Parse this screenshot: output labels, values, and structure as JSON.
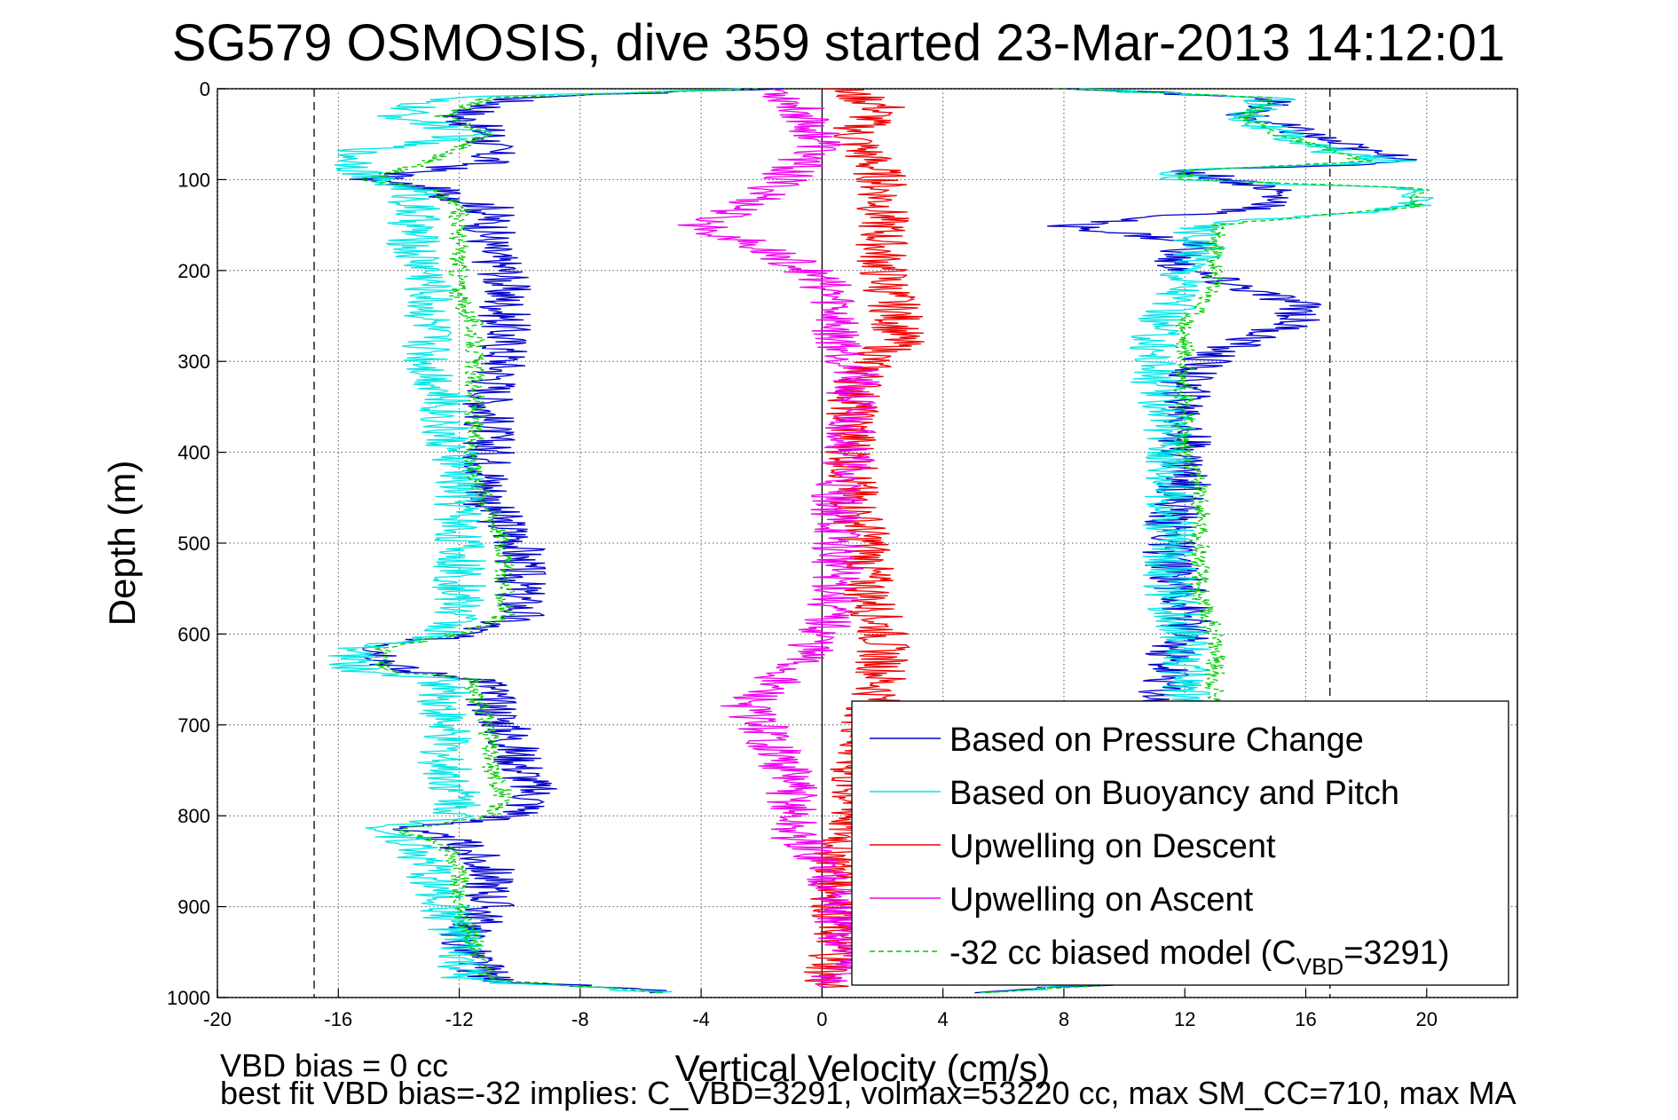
{
  "chart_data": {
    "type": "line",
    "title": "SG579 OSMOSIS, dive 359 started 23-Mar-2013 14:12:01",
    "xlabel": "Vertical Velocity (cm/s)",
    "ylabel": "Depth (m)",
    "xlim": [
      -20,
      23
    ],
    "ylim": [
      0,
      1000
    ],
    "y_reversed": true,
    "grid": true,
    "legend_position": "bottom-right",
    "x_ticks": [
      "-20",
      "-16",
      "-12",
      "-8",
      "-4",
      "0",
      "4",
      "8",
      "12",
      "16",
      "20"
    ],
    "y_ticks": [
      "0",
      "100",
      "200",
      "300",
      "400",
      "500",
      "600",
      "700",
      "800",
      "900",
      "1000"
    ],
    "reference_lines": [
      {
        "style": "dashed",
        "x": -16.8
      },
      {
        "style": "dashed",
        "x": 16.8
      },
      {
        "style": "solid",
        "x": 0
      }
    ],
    "legend": {
      "entries": [
        {
          "label": "Based on Pressure Change",
          "color": "#0000cc",
          "dash": false
        },
        {
          "label": "Based on Buoyancy and Pitch",
          "color": "#00e5e5",
          "dash": false
        },
        {
          "label": "Upwelling on Descent",
          "color": "#ee0000",
          "dash": false
        },
        {
          "label": "Upwelling on Ascent",
          "color": "#ee00ee",
          "dash": false
        },
        {
          "label_main": "-32 cc biased model (C",
          "label_sub": "VBD",
          "label_tail": "=3291)",
          "color": "#00cc00",
          "dash": true
        }
      ]
    },
    "series": [
      {
        "id": "pressure_descent",
        "color": "#0000cc",
        "depth": [
          0,
          10,
          30,
          50,
          80,
          100,
          110,
          130,
          150,
          180,
          200,
          230,
          260,
          300,
          340,
          380,
          420,
          460,
          500,
          540,
          580,
          600,
          615,
          640,
          650,
          670,
          700,
          740,
          780,
          800,
          815,
          830,
          860,
          900,
          940,
          980,
          995
        ],
        "velocity": [
          -2,
          -10,
          -12,
          -11,
          -11,
          -15,
          -13,
          -11,
          -11,
          -11,
          -10.5,
          -10.5,
          -10.5,
          -10.5,
          -11,
          -11,
          -11,
          -11,
          -10,
          -10,
          -10,
          -12,
          -14.5,
          -14,
          -11,
          -11,
          -10.5,
          -10,
          -9.5,
          -10,
          -14,
          -12,
          -11,
          -11,
          -12,
          -11,
          -5
        ]
      },
      {
        "id": "buoyancy_descent",
        "color": "#00e5e5",
        "depth": [
          0,
          10,
          30,
          50,
          70,
          100,
          110,
          130,
          150,
          180,
          200,
          230,
          260,
          300,
          340,
          380,
          420,
          460,
          500,
          540,
          580,
          600,
          615,
          640,
          650,
          670,
          700,
          740,
          780,
          800,
          815,
          830,
          860,
          900,
          940,
          980,
          995
        ],
        "velocity": [
          -2,
          -13,
          -14,
          -11.5,
          -15.5,
          -15,
          -13.5,
          -13.5,
          -13.5,
          -13.5,
          -13,
          -13,
          -13,
          -13,
          -12.5,
          -12.5,
          -12,
          -12,
          -12,
          -12,
          -12,
          -12.5,
          -15.5,
          -15.5,
          -12.5,
          -12.5,
          -12.5,
          -12.5,
          -12,
          -12,
          -14.5,
          -13.5,
          -13,
          -12.5,
          -12,
          -12,
          -5
        ]
      },
      {
        "id": "model_descent",
        "color": "#00cc00",
        "dash": true,
        "depth": [
          0,
          10,
          30,
          50,
          80,
          100,
          110,
          130,
          150,
          180,
          200,
          230,
          260,
          300,
          340,
          380,
          420,
          460,
          500,
          540,
          580,
          600,
          615,
          640,
          650,
          670,
          700,
          740,
          780,
          800,
          815,
          830,
          860,
          900,
          940,
          980,
          995
        ],
        "velocity": [
          -2,
          -11,
          -12.5,
          -11,
          -13,
          -15,
          -13,
          -12,
          -12,
          -12,
          -12,
          -12,
          -11.5,
          -11.5,
          -11.5,
          -11.5,
          -11.5,
          -11,
          -10.5,
          -10.5,
          -10.5,
          -12,
          -14.5,
          -14.5,
          -11.5,
          -11.5,
          -11,
          -11,
          -10.5,
          -11,
          -14,
          -12.5,
          -12,
          -12,
          -11.5,
          -11,
          -5
        ]
      },
      {
        "id": "pressure_ascent",
        "color": "#0000cc",
        "depth": [
          995,
          980,
          950,
          900,
          850,
          800,
          750,
          700,
          680,
          650,
          620,
          600,
          560,
          520,
          480,
          440,
          400,
          360,
          320,
          290,
          260,
          240,
          220,
          200,
          190,
          170,
          150,
          130,
          110,
          90,
          80,
          70,
          50,
          30,
          10,
          0
        ],
        "velocity": [
          5,
          12,
          12,
          12,
          12,
          12,
          11.5,
          11,
          11,
          11.5,
          11.5,
          12,
          12,
          11.5,
          11.5,
          12,
          12,
          12,
          12,
          13,
          15.5,
          16,
          14,
          12,
          11.5,
          12.5,
          8,
          15,
          15,
          12,
          20,
          18,
          16,
          14,
          15,
          8
        ]
      },
      {
        "id": "buoyancy_ascent",
        "color": "#00e5e5",
        "depth": [
          995,
          980,
          950,
          900,
          850,
          800,
          750,
          700,
          680,
          650,
          620,
          600,
          560,
          520,
          480,
          440,
          400,
          360,
          320,
          290,
          260,
          240,
          220,
          200,
          190,
          170,
          150,
          130,
          110,
          100,
          90,
          80,
          70,
          50,
          30,
          10,
          0
        ],
        "velocity": [
          5,
          12,
          12,
          12,
          12,
          12,
          12,
          12,
          12,
          12,
          12,
          12,
          11.5,
          11.5,
          11.5,
          11.5,
          11.5,
          11.5,
          11,
          11,
          11,
          11.5,
          12,
          12,
          12.5,
          12.5,
          12.5,
          19.5,
          19.5,
          12,
          12,
          19,
          17,
          15,
          14,
          15,
          8
        ]
      },
      {
        "id": "model_ascent",
        "color": "#00cc00",
        "dash": true,
        "depth": [
          995,
          980,
          950,
          900,
          850,
          800,
          750,
          700,
          680,
          650,
          620,
          600,
          560,
          520,
          480,
          440,
          400,
          360,
          320,
          290,
          260,
          240,
          220,
          200,
          190,
          170,
          150,
          130,
          110,
          100,
          90,
          80,
          70,
          50,
          30,
          10,
          0
        ],
        "velocity": [
          5,
          13,
          13,
          13,
          13,
          13,
          13,
          13,
          13,
          13,
          13,
          13,
          12.5,
          12.5,
          12.5,
          12.5,
          12,
          12,
          12,
          12,
          12,
          12.5,
          13,
          13,
          13,
          13,
          13,
          19.5,
          20,
          12,
          12,
          18,
          17,
          15,
          14,
          15,
          8
        ]
      },
      {
        "id": "upwelling_descent",
        "color": "#ee0000",
        "depth": [
          0,
          20,
          50,
          100,
          150,
          200,
          250,
          280,
          300,
          350,
          400,
          450,
          500,
          550,
          600,
          650,
          700,
          750,
          800,
          850,
          900,
          950,
          990
        ],
        "velocity": [
          0.5,
          2,
          1,
          2,
          2,
          2,
          2.5,
          2.5,
          1.5,
          1,
          1,
          1,
          1.5,
          1.5,
          2,
          2,
          1.5,
          1,
          1,
          0.5,
          0.5,
          0.5,
          0
        ]
      },
      {
        "id": "upwelling_ascent",
        "color": "#ee00ee",
        "depth": [
          0,
          30,
          60,
          90,
          120,
          150,
          170,
          190,
          210,
          240,
          270,
          300,
          350,
          400,
          450,
          500,
          550,
          600,
          620,
          650,
          680,
          700,
          730,
          760,
          790,
          820,
          850,
          880,
          920,
          960,
          990
        ],
        "velocity": [
          -1.5,
          -0.5,
          0,
          -1,
          -2,
          -4,
          -2.5,
          -1,
          0,
          0.5,
          0.5,
          1,
          1,
          1,
          0.5,
          0.5,
          0.5,
          0,
          -0.5,
          -1.5,
          -2.5,
          -2,
          -1.5,
          -1,
          -1,
          -1,
          0,
          0.5,
          0.5,
          1,
          0
        ]
      }
    ],
    "footer": {
      "line1": "VBD bias = 0 cc",
      "line2": "best fit VBD bias=-32 implies: C_VBD=3291, volmax=53220 cc, max SM_CC=710, max MA"
    }
  }
}
